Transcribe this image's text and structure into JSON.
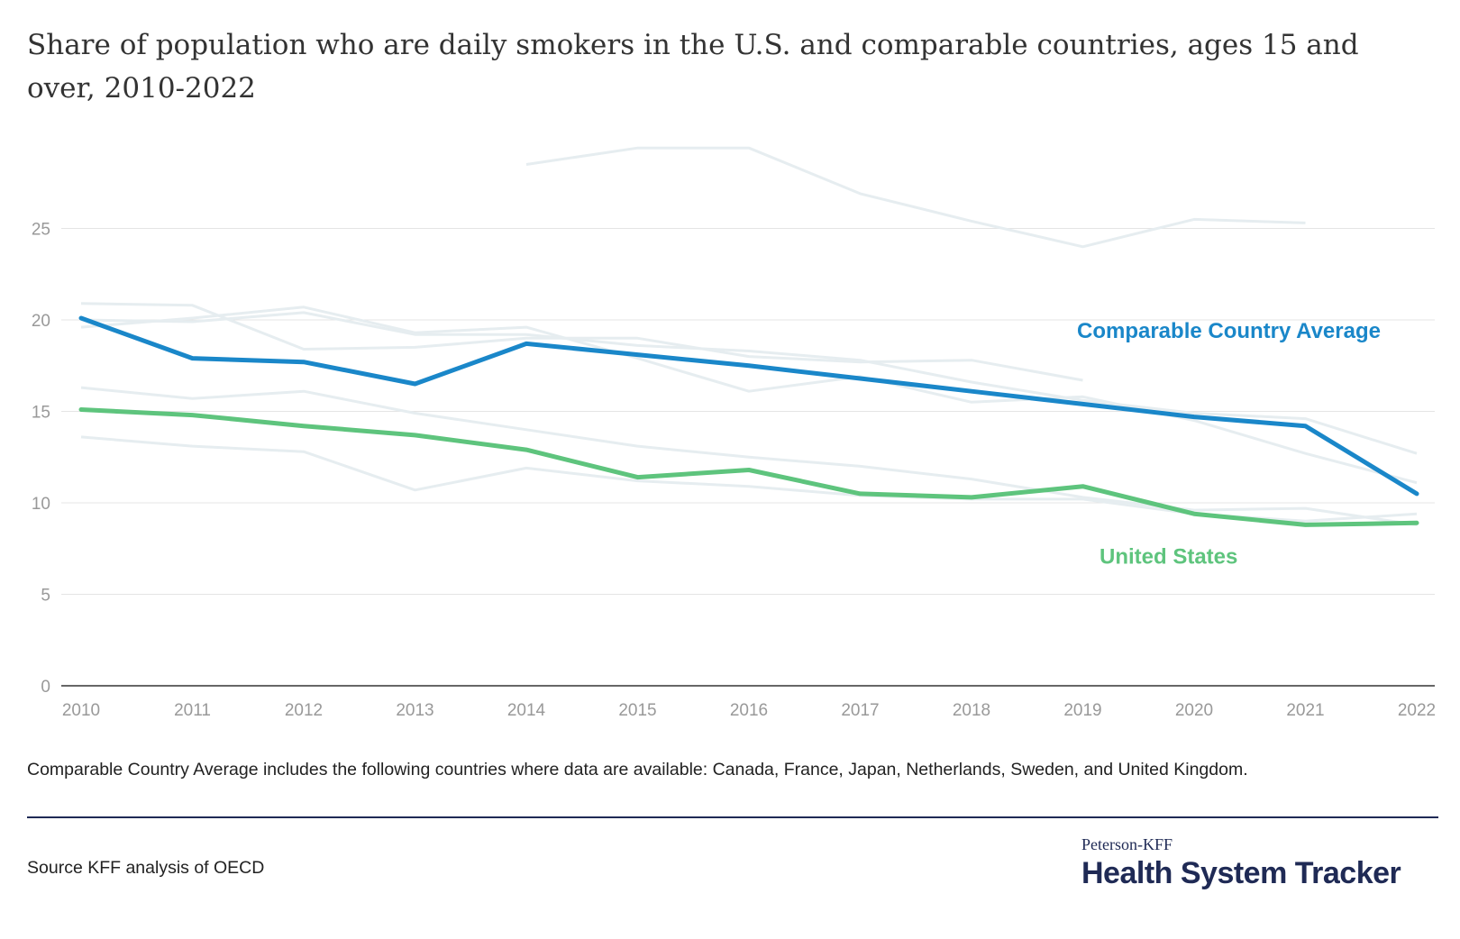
{
  "title": "Share of population who are daily smokers in the U.S. and comparable countries, ages 15 and over, 2010-2022",
  "note": "Comparable Country Average includes the following countries where data are available: Canada, France, Japan, Netherlands, Sweden, and United Kingdom.",
  "source": "Source KFF analysis of OECD",
  "brand": {
    "small": "Peterson-KFF",
    "big": "Health System Tracker"
  },
  "colors": {
    "average": "#1a87c9",
    "us": "#5ec47d",
    "background_lines": "#e6edf0",
    "grid": "#e4e4e4",
    "axis_text": "#999999"
  },
  "chart_data": {
    "type": "line",
    "x": [
      2010,
      2011,
      2012,
      2013,
      2014,
      2015,
      2016,
      2017,
      2018,
      2019,
      2020,
      2021,
      2022
    ],
    "ylim": [
      0,
      30
    ],
    "yticks": [
      0,
      5,
      10,
      15,
      20,
      25
    ],
    "xlabel": "",
    "ylabel": "",
    "grid": "horizontal",
    "series": [
      {
        "name": "Comparable Country Average",
        "highlight": true,
        "label_position": "right-above-line",
        "values": [
          20.1,
          17.9,
          17.7,
          16.5,
          18.7,
          18.1,
          17.5,
          16.8,
          16.1,
          15.4,
          14.7,
          14.2,
          10.5
        ]
      },
      {
        "name": "United States",
        "highlight": true,
        "label_position": "right-below-line",
        "values": [
          15.1,
          14.8,
          14.2,
          13.7,
          12.9,
          11.4,
          11.8,
          10.5,
          10.3,
          10.9,
          9.4,
          8.8,
          8.9
        ]
      },
      {
        "highlight": false,
        "values": [
          null,
          null,
          null,
          null,
          28.5,
          29.4,
          29.4,
          26.9,
          25.4,
          24.0,
          25.5,
          25.3,
          null
        ]
      },
      {
        "highlight": false,
        "values": [
          20.9,
          20.8,
          18.4,
          18.5,
          19.0,
          19.0,
          18.0,
          17.7,
          17.8,
          16.7,
          null,
          null,
          null
        ]
      },
      {
        "highlight": false,
        "values": [
          19.6,
          20.1,
          20.7,
          19.3,
          19.6,
          17.9,
          16.1,
          16.9,
          15.5,
          15.8,
          14.5,
          12.7,
          11.1
        ]
      },
      {
        "highlight": false,
        "values": [
          20.0,
          19.9,
          20.4,
          19.2,
          19.2,
          18.6,
          18.3,
          17.8,
          16.6,
          15.6,
          14.9,
          14.6,
          12.7
        ]
      },
      {
        "highlight": false,
        "values": [
          16.3,
          15.7,
          16.1,
          14.9,
          14.0,
          13.1,
          12.5,
          12.0,
          11.3,
          10.3,
          9.6,
          9.7,
          8.8
        ]
      },
      {
        "highlight": false,
        "values": [
          13.6,
          13.1,
          12.8,
          10.7,
          11.9,
          11.2,
          10.9,
          10.4,
          10.2,
          10.2,
          9.4,
          9.0,
          9.4
        ]
      }
    ]
  }
}
